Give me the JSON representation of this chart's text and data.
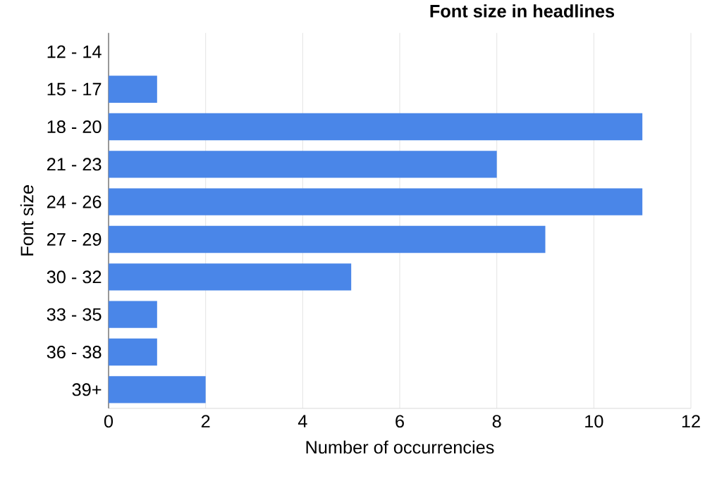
{
  "chart_data": {
    "type": "bar",
    "orientation": "horizontal",
    "title": "Font size in headlines",
    "xlabel": "Number of occurrencies",
    "ylabel": "Font size",
    "categories": [
      "12 - 14",
      "15 - 17",
      "18 - 20",
      "21 - 23",
      "24 - 26",
      "27 - 29",
      "30 - 32",
      "33 - 35",
      "36 - 38",
      "39+"
    ],
    "values": [
      0,
      1,
      11,
      8,
      11,
      9,
      5,
      1,
      1,
      2
    ],
    "color": "#4a86e8",
    "xlim": [
      0,
      12
    ],
    "xticks": [
      0,
      2,
      4,
      6,
      8,
      10,
      12
    ],
    "grid": "x"
  }
}
